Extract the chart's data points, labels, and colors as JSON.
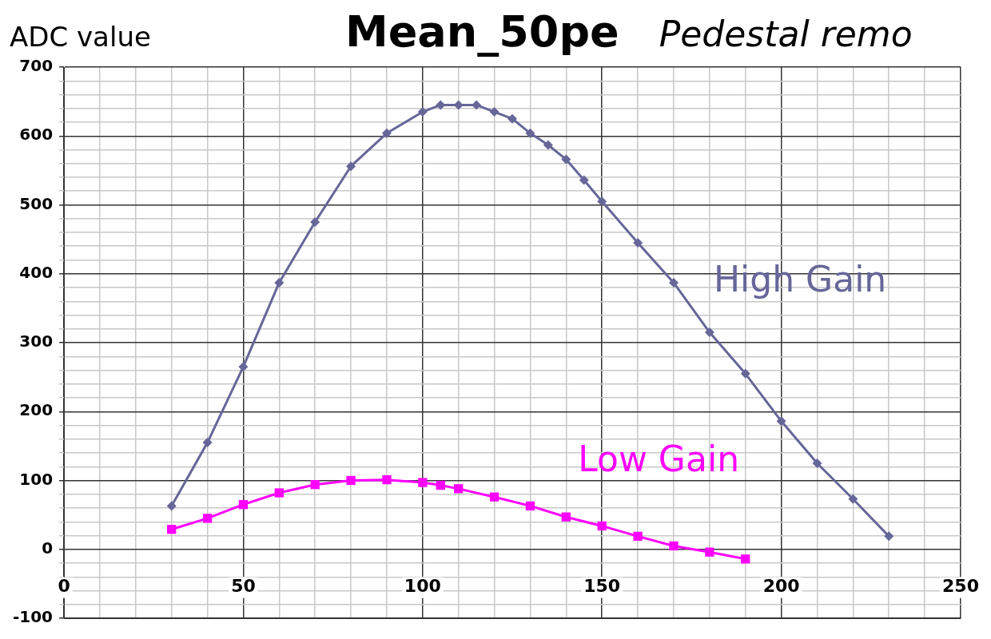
{
  "chart_data": {
    "type": "line",
    "title": "Mean_50pe",
    "subtitle": "Pedestal remo",
    "ylabel": "ADC value",
    "xlim": [
      0,
      250
    ],
    "xticks": [
      0,
      {
        "value": 10,
        "label": null
      },
      {
        "value": 20,
        "label": null
      },
      {
        "value": 30,
        "label": null
      },
      {
        "value": 40,
        "label": null
      },
      50,
      {
        "value": 60,
        "label": null
      },
      {
        "value": 70,
        "label": null
      },
      {
        "value": 80,
        "label": null
      },
      {
        "value": 90,
        "label": null
      },
      100,
      {
        "value": 110,
        "label": null
      },
      {
        "value": 120,
        "label": null
      },
      {
        "value": 130,
        "label": null
      },
      {
        "value": 140,
        "label": null
      },
      150,
      {
        "value": 160,
        "label": null
      },
      {
        "value": 170,
        "label": null
      },
      {
        "value": 180,
        "label": null
      },
      {
        "value": 190,
        "label": null
      },
      200,
      {
        "value": 210,
        "label": null
      },
      {
        "value": 220,
        "label": null
      },
      {
        "value": 230,
        "label": null
      },
      {
        "value": 240,
        "label": null
      },
      250
    ],
    "ylim": [
      -100,
      700
    ],
    "yticks": [
      -100,
      {
        "value": -80,
        "label": null
      },
      {
        "value": -60,
        "label": null
      },
      {
        "value": -40,
        "label": null
      },
      {
        "value": -20,
        "label": null
      },
      0,
      {
        "value": 20,
        "label": null
      },
      {
        "value": 40,
        "label": null
      },
      {
        "value": 60,
        "label": null
      },
      {
        "value": 80,
        "label": null
      },
      100,
      {
        "value": 120,
        "label": null
      },
      {
        "value": 140,
        "label": null
      },
      {
        "value": 160,
        "label": null
      },
      {
        "value": 180,
        "label": null
      },
      200,
      {
        "value": 220,
        "label": null
      },
      {
        "value": 240,
        "label": null
      },
      {
        "value": 260,
        "label": null
      },
      {
        "value": 280,
        "label": null
      },
      300,
      {
        "value": 320,
        "label": null
      },
      {
        "value": 340,
        "label": null
      },
      {
        "value": 360,
        "label": null
      },
      {
        "value": 380,
        "label": null
      },
      400,
      {
        "value": 420,
        "label": null
      },
      {
        "value": 440,
        "label": null
      },
      {
        "value": 460,
        "label": null
      },
      {
        "value": 480,
        "label": null
      },
      500,
      {
        "value": 520,
        "label": null
      },
      {
        "value": 540,
        "label": null
      },
      {
        "value": 560,
        "label": null
      },
      {
        "value": 580,
        "label": null
      },
      600,
      {
        "value": 620,
        "label": null
      },
      {
        "value": 640,
        "label": null
      },
      {
        "value": 660,
        "label": null
      },
      {
        "value": 680,
        "label": null
      },
      700
    ],
    "grid": true,
    "legend": false,
    "line_style": "solid",
    "series": [
      {
        "name": "High Gain",
        "color": "#666699",
        "marker": "diamond",
        "x": [
          30,
          40,
          50,
          60,
          70,
          80,
          90,
          100,
          105,
          110,
          115,
          120,
          125,
          130,
          135,
          140,
          145,
          150,
          160,
          170,
          180,
          190,
          200,
          210,
          220,
          230
        ],
        "values": [
          63,
          155,
          265,
          387,
          475,
          556,
          604,
          635,
          645,
          645,
          645,
          635,
          625,
          604,
          587,
          566,
          536,
          505,
          445,
          387,
          315,
          255,
          186,
          125,
          73,
          19
        ]
      },
      {
        "name": "Low Gain",
        "color": "#ff00ff",
        "marker": "square",
        "x": [
          30,
          40,
          50,
          60,
          70,
          80,
          90,
          100,
          105,
          110,
          120,
          130,
          140,
          150,
          160,
          170,
          180,
          190
        ],
        "values": [
          29,
          45,
          65,
          82,
          94,
          100,
          101,
          97,
          93,
          88,
          76,
          63,
          47,
          34,
          19,
          5,
          -4,
          -14
        ]
      }
    ]
  }
}
